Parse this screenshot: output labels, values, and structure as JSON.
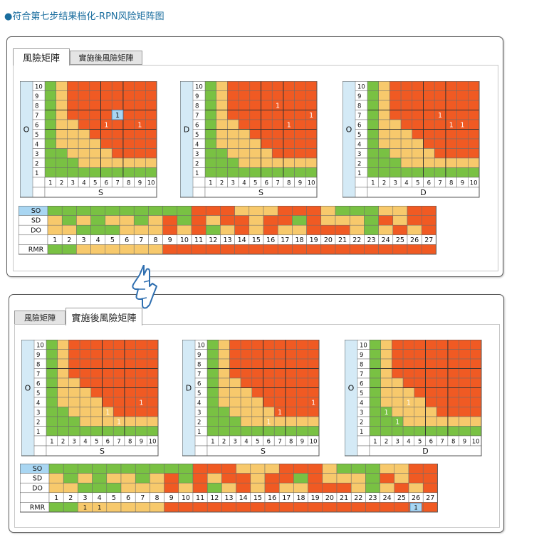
{
  "caption": "●符合第七步结果档化-RPN风险矩阵图",
  "colors": {
    "red": "#f05a23",
    "yellow": "#f7c96c",
    "green": "#79c143",
    "axis_blue": "#d4eaf6",
    "so_blue": "#a9d6f2",
    "grid": "#6b6b6b",
    "frame": "#555555"
  },
  "top_panel": {
    "tabs": [
      {
        "label": "風險矩陣",
        "active": true
      },
      {
        "label": "實施後風險矩陣",
        "active": false
      }
    ],
    "matrices": [
      {
        "y_axis": "O",
        "x_axis": "S",
        "marks": [
          {
            "x": 7,
            "y": 7,
            "value": "1",
            "highlight": true
          },
          {
            "x": 6,
            "y": 6,
            "value": "1"
          },
          {
            "x": 9,
            "y": 6,
            "value": "1"
          }
        ]
      },
      {
        "y_axis": "D",
        "x_axis": "S",
        "marks": [
          {
            "x": 7,
            "y": 8,
            "value": "1"
          },
          {
            "x": 10,
            "y": 7,
            "value": "1"
          },
          {
            "x": 8,
            "y": 6,
            "value": "1"
          }
        ]
      },
      {
        "y_axis": "O",
        "x_axis": "D",
        "marks": [
          {
            "x": 7,
            "y": 7,
            "value": "1"
          },
          {
            "x": 8,
            "y": 6,
            "value": "1"
          },
          {
            "x": 9,
            "y": 6,
            "value": "1"
          }
        ]
      }
    ],
    "rmr": {
      "row_labels": [
        "SO",
        "SD",
        "DO",
        "",
        "RMR"
      ],
      "columns": [
        "1",
        "2",
        "3",
        "4",
        "5",
        "6",
        "7",
        "8",
        "9",
        "10",
        "11",
        "12",
        "13",
        "14",
        "15",
        "16",
        "17",
        "18",
        "19",
        "20",
        "21",
        "22",
        "23",
        "24",
        "25",
        "26",
        "27"
      ],
      "marks": []
    }
  },
  "bottom_panel": {
    "tabs": [
      {
        "label": "風險矩陣",
        "active": false
      },
      {
        "label": "實施後風險矩陣",
        "active": true
      }
    ],
    "matrices": [
      {
        "y_axis": "O",
        "x_axis": "S",
        "marks": [
          {
            "x": 6,
            "y": 3,
            "value": "1"
          },
          {
            "x": 9,
            "y": 4,
            "value": "1"
          },
          {
            "x": 7,
            "y": 2,
            "value": "1"
          }
        ]
      },
      {
        "y_axis": "D",
        "x_axis": "S",
        "marks": [
          {
            "x": 7,
            "y": 3,
            "value": "1"
          },
          {
            "x": 10,
            "y": 4,
            "value": "1"
          },
          {
            "x": 6,
            "y": 2,
            "value": "1"
          }
        ]
      },
      {
        "y_axis": "O",
        "x_axis": "D",
        "marks": [
          {
            "x": 4,
            "y": 4,
            "value": "1"
          },
          {
            "x": 2,
            "y": 3,
            "value": "1"
          },
          {
            "x": 3,
            "y": 2,
            "value": "1"
          }
        ]
      }
    ],
    "rmr": {
      "row_labels": [
        "SO",
        "SD",
        "DO",
        "",
        "RMR"
      ],
      "columns": [
        "1",
        "2",
        "3",
        "4",
        "5",
        "6",
        "7",
        "8",
        "9",
        "10",
        "11",
        "12",
        "13",
        "14",
        "15",
        "16",
        "17",
        "18",
        "19",
        "20",
        "21",
        "22",
        "23",
        "24",
        "25",
        "26",
        "27"
      ],
      "marks": [
        {
          "col": 3,
          "value": "1"
        },
        {
          "col": 4,
          "value": "1"
        },
        {
          "col": 26,
          "value": "1",
          "highlight": true
        }
      ]
    }
  }
}
